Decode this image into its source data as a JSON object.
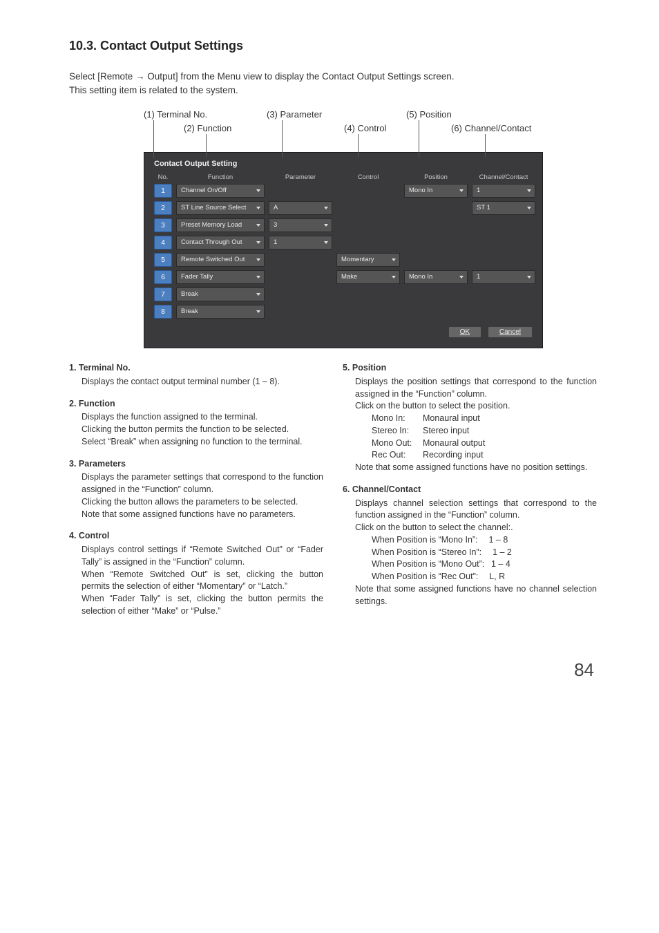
{
  "heading": "10.3. Contact Output Settings",
  "intro_line1": "Select [Remote → Output] from the Menu view to display the Contact Output Settings screen.",
  "intro_line2": "This setting item is related to the system.",
  "page_number": "84",
  "callout": {
    "c1": "(1) Terminal No.",
    "c2": "(2) Function",
    "c3": "(3) Parameter",
    "c4": "(4) Control",
    "c5": "(5) Position",
    "c6": "(6) Channel/Contact"
  },
  "screenshot": {
    "title": "Contact Output Setting",
    "headers": {
      "no": "No.",
      "func": "Function",
      "param": "Parameter",
      "control": "Control",
      "position": "Position",
      "cc": "Channel/Contact"
    },
    "rows": [
      {
        "no": "1",
        "func": "Channel On/Off",
        "control": null,
        "position": "Mono In",
        "cc": "1"
      },
      {
        "no": "2",
        "func": "ST Line Source Select",
        "param": "A",
        "cc": "ST 1"
      },
      {
        "no": "3",
        "func": "Preset Memory Load",
        "param": "3"
      },
      {
        "no": "4",
        "func": "Contact Through Out",
        "param": "1"
      },
      {
        "no": "5",
        "func": "Remote Switched Out",
        "control": "Momentary"
      },
      {
        "no": "6",
        "func": "Fader Tally",
        "control": "Make",
        "position": "Mono In",
        "cc": "1"
      },
      {
        "no": "7",
        "func": "Break"
      },
      {
        "no": "8",
        "func": "Break"
      }
    ],
    "ok": "OK",
    "cancel": "Cancel"
  },
  "left": [
    {
      "h": "1. Terminal No.",
      "p": [
        "Displays the contact output terminal number (1 – 8)."
      ]
    },
    {
      "h": "2. Function",
      "p": [
        "Displays the function assigned to the terminal.",
        "Clicking the button permits the function to be selected.",
        "Select “Break” when assigning no function to the terminal."
      ]
    },
    {
      "h": "3. Parameters",
      "p": [
        "Displays the parameter settings that correspond to the function assigned in the “Function” column.",
        "Clicking the button allows the parameters to be selected.",
        "Note that some assigned functions have no parameters."
      ]
    },
    {
      "h": "4. Control",
      "p": [
        "Displays control settings if “Remote Switched Out” or “Fader Tally” is assigned in the “Function” column.",
        "When “Remote Switched Out” is set, clicking the button permits the selection of either “Momentary” or “Latch.”",
        "When “Fader Tally” is set, clicking the button permits the selection of either “Make” or “Pulse.”"
      ]
    }
  ],
  "right": [
    {
      "h": "5. Position",
      "lead": [
        "Displays the position settings that correspond to the function assigned in the “Function” column.",
        "Click on the button to select the position."
      ],
      "defs": [
        {
          "k": "Mono In:",
          "v": "Monaural input"
        },
        {
          "k": "Stereo In:",
          "v": "Stereo input"
        },
        {
          "k": "Mono Out:",
          "v": "Monaural output"
        },
        {
          "k": "Rec Out:",
          "v": "Recording input"
        }
      ],
      "tail": "Note that some assigned functions have no position settings."
    },
    {
      "h": "6. Channel/Contact",
      "lead": [
        "Displays channel selection settings that correspond to the function assigned in the “Function” column.",
        "Click on the button to select the channel:."
      ],
      "vals": [
        "When Position is “Mono In”:  1 – 8",
        "When Position is “Stereo In”:  1 – 2",
        "When Position is “Mono Out”:  1 – 4",
        "When Position is “Rec Out”:  L, R"
      ],
      "tail": "Note that some assigned functions have no channel selection settings."
    }
  ]
}
